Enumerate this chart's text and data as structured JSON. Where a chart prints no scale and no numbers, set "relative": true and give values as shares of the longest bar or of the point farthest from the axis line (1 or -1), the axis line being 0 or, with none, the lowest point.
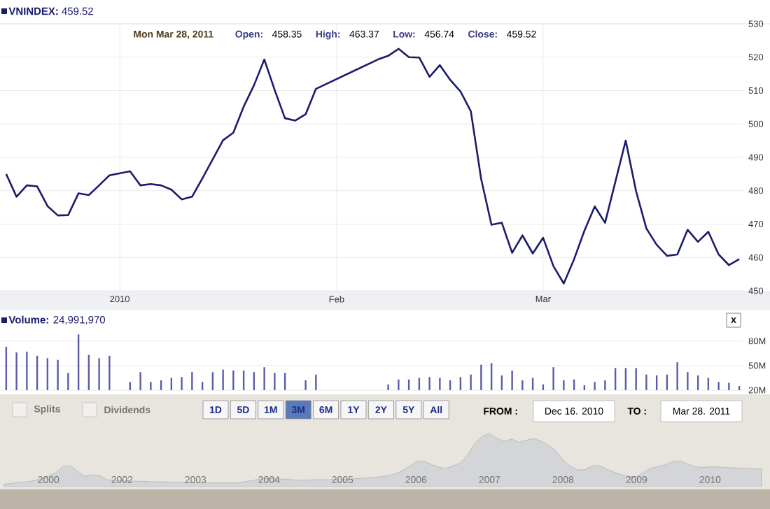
{
  "chart_data": [
    {
      "type": "line",
      "title": "**VNINDEX:** 459.52",
      "annotations": [
        "Mon Mar 28, 2011",
        "Open:",
        "458.35",
        "High:",
        "463.37",
        "Low:",
        "456.74",
        "Close:",
        "459.52"
      ],
      "categories": [
        null,
        null,
        null,
        null,
        null,
        null,
        null,
        null,
        null,
        null,
        null,
        "2010",
        null,
        null,
        null,
        null,
        null,
        null,
        null,
        null,
        null,
        null,
        null,
        null,
        null,
        null,
        null,
        null,
        null,
        null,
        null,
        null,
        "Feb",
        null,
        null,
        null,
        null,
        null,
        null,
        null,
        null,
        null,
        null,
        null,
        null,
        null,
        null,
        null,
        null,
        null,
        null,
        null,
        "Mar",
        null,
        null,
        null,
        null,
        null,
        null,
        null,
        null,
        null,
        null,
        null,
        null,
        null,
        null,
        null,
        null,
        null,
        null,
        null
      ],
      "values": [
        485,
        478.2,
        481.6,
        481.3,
        475.4,
        472.6,
        472.7,
        479.2,
        478.7,
        481.6,
        484.6,
        null,
        485.8,
        481.6,
        482,
        481.6,
        480.3,
        477.4,
        478.2,
        483.7,
        489.4,
        495.1,
        497.4,
        505.2,
        511.6,
        519.3,
        510.2,
        501.7,
        501,
        502.9,
        510.5,
        null,
        null,
        null,
        null,
        null,
        519.3,
        520.4,
        522.5,
        520,
        519.9,
        514.1,
        517.6,
        513.2,
        509.7,
        503.8,
        483.5,
        469.8,
        470.4,
        461.4,
        466.6,
        461.2,
        465.9,
        457.4,
        452.2,
        459.5,
        468,
        475.3,
        470.4,
        482.7,
        495,
        479.9,
        468.7,
        463.8,
        460.5,
        460.9,
        468.3,
        464.7,
        467.7,
        460.9,
        457.7,
        459.5
      ],
      "color": "#1c1c6c",
      "ylim": [
        450,
        530
      ],
      "yticks": [
        450,
        460,
        470,
        480,
        490,
        500,
        510,
        520,
        530
      ],
      "grid": true
    },
    {
      "type": "bar",
      "title": "**Volume:** 24,991,970",
      "annotations": [
        "x"
      ],
      "categories": [
        null,
        null,
        null,
        null,
        null,
        null,
        null,
        null,
        null,
        null,
        null,
        null,
        null,
        null,
        null,
        null,
        null,
        null,
        null,
        null,
        null,
        null,
        null,
        null,
        null,
        null,
        null,
        null,
        null,
        null,
        null,
        null,
        null,
        null,
        null,
        null,
        null,
        null,
        null,
        null,
        null,
        null,
        null,
        null,
        null,
        null,
        null,
        null,
        null,
        null,
        null,
        null,
        null,
        null,
        null,
        null,
        null,
        null,
        null,
        null,
        null,
        null,
        null,
        null,
        null,
        null,
        null,
        null,
        null,
        null,
        null,
        null
      ],
      "values": [
        73,
        66,
        67,
        62,
        59,
        57,
        41,
        88,
        63,
        59,
        62,
        null,
        30,
        42,
        30,
        32,
        35,
        36,
        42,
        30,
        42,
        45,
        44,
        44,
        42,
        48,
        41,
        41,
        null,
        32,
        39,
        null,
        null,
        null,
        null,
        null,
        null,
        27,
        33,
        33,
        35,
        36,
        35,
        32,
        36,
        39,
        51,
        53,
        38,
        44,
        32,
        35,
        27,
        48,
        32,
        33,
        26,
        30,
        32,
        47,
        47,
        47,
        39,
        38,
        39,
        54,
        42,
        38,
        35,
        30,
        29,
        25
      ],
      "color": "#5b5ba8",
      "ylim": [
        20,
        90
      ],
      "yticks": [
        {
          "value": 20,
          "label": "20M"
        },
        {
          "value": 50,
          "label": "50M"
        },
        {
          "value": 80,
          "label": "80M"
        }
      ],
      "grid": "y",
      "tick_labels": "y"
    },
    {
      "type": "area",
      "relative": true,
      "annotations": [
        "Splits",
        "Dividends",
        "1D",
        "5D",
        "1M",
        "3M",
        "6M",
        "1Y",
        "2Y",
        "5Y",
        "All",
        "FROM :",
        "Dec 16. 2010",
        "TO :",
        "Mar 28. 2011"
      ],
      "categories": [
        null,
        null,
        null,
        null,
        null,
        null,
        "2000",
        null,
        null,
        null,
        null,
        null,
        null,
        null,
        null,
        null,
        "2002",
        null,
        null,
        null,
        null,
        null,
        null,
        null,
        null,
        null,
        "2003",
        null,
        null,
        null,
        null,
        null,
        null,
        null,
        null,
        null,
        "2004",
        null,
        null,
        null,
        null,
        null,
        null,
        null,
        null,
        null,
        "2005",
        null,
        null,
        null,
        null,
        null,
        null,
        null,
        null,
        null,
        "2006",
        null,
        null,
        null,
        null,
        null,
        null,
        null,
        null,
        null,
        "2007",
        null,
        null,
        null,
        null,
        null,
        null,
        null,
        null,
        null,
        "2008",
        null,
        null,
        null,
        null,
        null,
        null,
        null,
        null,
        null,
        "2009",
        null,
        null,
        null,
        null,
        null,
        null,
        null,
        null,
        null,
        "2010",
        null,
        null,
        null,
        null,
        null,
        null,
        null
      ],
      "values": [
        0.05,
        0.06,
        0.08,
        0.09,
        0.11,
        0.15,
        0.2,
        0.26,
        0.38,
        0.39,
        0.28,
        0.19,
        0.22,
        0.2,
        0.13,
        0.12,
        0.11,
        0.11,
        0.1,
        0.1,
        0.09,
        0.09,
        0.09,
        0.08,
        0.08,
        0.08,
        0.07,
        0.07,
        0.07,
        0.07,
        0.07,
        0.07,
        0.07,
        0.1,
        0.12,
        0.15,
        0.15,
        0.15,
        0.14,
        0.13,
        0.12,
        0.12,
        0.13,
        0.13,
        0.13,
        0.14,
        0.14,
        0.14,
        0.15,
        0.16,
        0.17,
        0.18,
        0.2,
        0.23,
        0.29,
        0.37,
        0.46,
        0.48,
        0.42,
        0.37,
        0.34,
        0.39,
        0.44,
        0.59,
        0.81,
        0.94,
        1,
        0.9,
        0.85,
        0.89,
        0.83,
        0.87,
        0.9,
        0.85,
        0.78,
        0.67,
        0.5,
        0.38,
        0.31,
        0.32,
        0.39,
        0.39,
        0.32,
        0.27,
        0.22,
        0.19,
        0.19,
        0.27,
        0.35,
        0.38,
        0.41,
        0.47,
        0.48,
        0.42,
        0.37,
        0.36,
        0.37,
        0.37,
        0.36,
        0.35,
        0.35,
        0.34,
        0.33,
        0.33
      ],
      "color": "#d3d5d9",
      "tick_labels": "x"
    }
  ]
}
